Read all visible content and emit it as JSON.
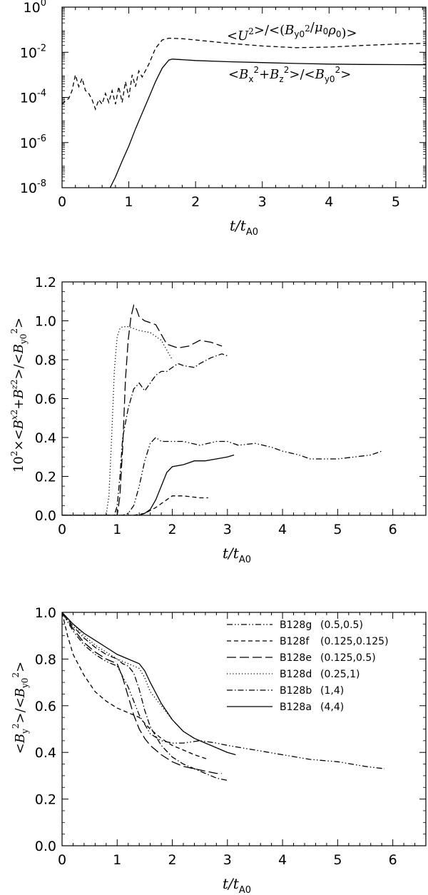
{
  "chart_data": [
    {
      "type": "line",
      "yscale": "log",
      "xlabel": "t/t_A0",
      "ylabel": "",
      "xlim": [
        0,
        5.45
      ],
      "ylim": [
        1e-08,
        1
      ],
      "xticks": [
        "0",
        "1",
        "2",
        "3",
        "4",
        "5"
      ],
      "yticks": [
        "10^0",
        "10^-2",
        "10^-4",
        "10^-6",
        "10^-8"
      ],
      "annotations": [
        "<U²>/<(B_y0²/μ₀ρ₀)>",
        "<B_x²+B_z²>/<B_y0²>"
      ],
      "series": [
        {
          "name": "<U²>/<(B_y0²/μ₀ρ₀)>",
          "style": "dashed",
          "x": [
            0,
            0.05,
            0.1,
            0.15,
            0.2,
            0.25,
            0.3,
            0.35,
            0.4,
            0.45,
            0.5,
            0.55,
            0.6,
            0.65,
            0.7,
            0.75,
            0.8,
            0.85,
            0.9,
            0.95,
            1.0,
            1.05,
            1.1,
            1.15,
            1.2,
            1.3,
            1.4,
            1.5,
            1.6,
            1.8,
            2.0,
            2.5,
            3.0,
            3.5,
            4.0,
            4.5,
            5.0,
            5.45
          ],
          "y": [
            5e-05,
            7e-05,
            9e-05,
            0.0002,
            0.001,
            0.0003,
            0.0007,
            0.0002,
            0.00015,
            8e-05,
            3e-05,
            8e-05,
            5e-05,
            0.00015,
            6e-05,
            0.0002,
            5e-05,
            0.0003,
            6e-05,
            0.0005,
            0.0001,
            0.001,
            0.0003,
            0.0015,
            0.0008,
            0.003,
            0.015,
            0.035,
            0.042,
            0.04,
            0.035,
            0.025,
            0.019,
            0.016,
            0.017,
            0.02,
            0.023,
            0.025
          ]
        },
        {
          "name": "<B_x²+B_z²>/<B_y0²>",
          "style": "solid",
          "x": [
            0.72,
            0.8,
            0.9,
            1.0,
            1.1,
            1.2,
            1.3,
            1.4,
            1.5,
            1.6,
            1.65,
            1.8,
            2.0,
            2.5,
            3.0,
            3.5,
            4.0,
            4.5,
            5.0,
            5.45
          ],
          "y": [
            1e-08,
            3e-08,
            1.5e-07,
            7e-07,
            4e-06,
            2e-05,
            0.0001,
            0.0005,
            0.002,
            0.0045,
            0.005,
            0.0047,
            0.0043,
            0.0038,
            0.0035,
            0.0032,
            0.003,
            0.0029,
            0.00285,
            0.0028
          ]
        }
      ]
    },
    {
      "type": "line",
      "xlabel": "t/t_A0",
      "ylabel": "10²×<B_x²+B_z²>/<B_y0²>",
      "xlim": [
        0,
        6.6
      ],
      "ylim": [
        0,
        1.2
      ],
      "xticks": [
        "0",
        "1",
        "2",
        "3",
        "4",
        "5",
        "6"
      ],
      "yticks": [
        "0.0",
        "0.2",
        "0.4",
        "0.6",
        "0.8",
        "1.0",
        "1.2"
      ],
      "series": [
        {
          "name": "B128g",
          "style": "dash-dot-dot",
          "x": [
            0,
            1.1,
            1.2,
            1.3,
            1.4,
            1.5,
            1.6,
            1.7,
            1.8,
            2.0,
            2.2,
            2.5,
            2.8,
            3.0,
            3.2,
            3.5,
            3.8,
            4.0,
            4.3,
            4.5,
            4.8,
            5.0,
            5.3,
            5.6,
            5.8
          ],
          "y": [
            0,
            0,
            0.01,
            0.05,
            0.15,
            0.28,
            0.37,
            0.4,
            0.38,
            0.38,
            0.38,
            0.36,
            0.38,
            0.38,
            0.36,
            0.37,
            0.35,
            0.33,
            0.31,
            0.29,
            0.29,
            0.29,
            0.3,
            0.31,
            0.33
          ]
        },
        {
          "name": "B128f",
          "style": "dashed",
          "x": [
            0,
            1.3,
            1.5,
            1.7,
            1.8,
            1.9,
            2.0,
            2.2,
            2.5,
            2.65
          ],
          "y": [
            0,
            0,
            0.01,
            0.04,
            0.06,
            0.08,
            0.1,
            0.1,
            0.09,
            0.09
          ]
        },
        {
          "name": "B128e",
          "style": "long-dash",
          "x": [
            0,
            1.0,
            1.05,
            1.1,
            1.15,
            1.2,
            1.25,
            1.3,
            1.35,
            1.4,
            1.5,
            1.7,
            1.9,
            2.1,
            2.3,
            2.5,
            2.7,
            2.9
          ],
          "y": [
            0,
            0,
            0.1,
            0.35,
            0.7,
            0.9,
            1.02,
            1.08,
            1.06,
            1.02,
            1.0,
            0.98,
            0.88,
            0.86,
            0.87,
            0.9,
            0.89,
            0.87
          ]
        },
        {
          "name": "B128d",
          "style": "dotted",
          "x": [
            0,
            0.8,
            0.85,
            0.9,
            0.95,
            1.0,
            1.05,
            1.1,
            1.2,
            1.3,
            1.4,
            1.6,
            1.8,
            1.9,
            2.0
          ],
          "y": [
            0,
            0,
            0.1,
            0.4,
            0.75,
            0.92,
            0.96,
            0.97,
            0.97,
            0.96,
            0.95,
            0.94,
            0.9,
            0.85,
            0.8
          ]
        },
        {
          "name": "B128b",
          "style": "dash-dot",
          "x": [
            0,
            0.95,
            1.0,
            1.05,
            1.1,
            1.2,
            1.3,
            1.4,
            1.5,
            1.6,
            1.7,
            1.8,
            1.9,
            2.0,
            2.1,
            2.2,
            2.4,
            2.5,
            2.7,
            2.9,
            3.0
          ],
          "y": [
            0,
            0,
            0.05,
            0.2,
            0.4,
            0.55,
            0.65,
            0.68,
            0.64,
            0.68,
            0.72,
            0.74,
            0.74,
            0.76,
            0.78,
            0.77,
            0.76,
            0.78,
            0.81,
            0.83,
            0.82
          ]
        },
        {
          "name": "B128a",
          "style": "solid",
          "x": [
            0,
            1.4,
            1.5,
            1.6,
            1.7,
            1.8,
            1.9,
            2.0,
            2.2,
            2.4,
            2.6,
            2.8,
            3.0,
            3.12
          ],
          "y": [
            0,
            0,
            0.01,
            0.03,
            0.08,
            0.15,
            0.22,
            0.25,
            0.26,
            0.28,
            0.28,
            0.29,
            0.3,
            0.31
          ]
        }
      ]
    },
    {
      "type": "line",
      "xlabel": "t/t_A0",
      "ylabel": "<B_y²>/<B_y0²>",
      "xlim": [
        0,
        6.6
      ],
      "ylim": [
        0,
        1.0
      ],
      "xticks": [
        "0",
        "1",
        "2",
        "3",
        "4",
        "5",
        "6"
      ],
      "yticks": [
        "0.0",
        "0.2",
        "0.4",
        "0.6",
        "0.8",
        "1.0"
      ],
      "legend": {
        "position": "top-right",
        "entries": [
          {
            "name": "B128g",
            "params": "(0.5,0.5)",
            "style": "dash-dot-dot"
          },
          {
            "name": "B128f",
            "params": "(0.125,0.125)",
            "style": "dashed"
          },
          {
            "name": "B128e",
            "params": "(0.125,0.5)",
            "style": "long-dash"
          },
          {
            "name": "B128d",
            "params": "(0.25,1)",
            "style": "dotted"
          },
          {
            "name": "B128b",
            "params": "(1,4)",
            "style": "dash-dot"
          },
          {
            "name": "B128a",
            "params": "(4,4)",
            "style": "solid"
          }
        ]
      },
      "series": [
        {
          "name": "B128g (0.5,0.5)",
          "style": "dash-dot-dot",
          "x": [
            0,
            0.2,
            0.4,
            0.6,
            0.8,
            1.0,
            1.2,
            1.4,
            1.6,
            1.8,
            2.0,
            2.2,
            2.5,
            2.8,
            3.0,
            3.5,
            4.0,
            4.5,
            5.0,
            5.5,
            5.85
          ],
          "y": [
            1.0,
            0.92,
            0.86,
            0.82,
            0.79,
            0.77,
            0.68,
            0.56,
            0.48,
            0.45,
            0.44,
            0.44,
            0.45,
            0.44,
            0.43,
            0.41,
            0.39,
            0.37,
            0.36,
            0.34,
            0.33
          ]
        },
        {
          "name": "B128f (0.125,0.125)",
          "style": "dashed",
          "x": [
            0,
            0.1,
            0.2,
            0.4,
            0.6,
            0.8,
            1.0,
            1.2,
            1.4,
            1.6,
            1.8,
            2.0,
            2.2,
            2.4,
            2.65
          ],
          "y": [
            1.0,
            0.9,
            0.82,
            0.73,
            0.66,
            0.62,
            0.59,
            0.57,
            0.55,
            0.5,
            0.46,
            0.43,
            0.41,
            0.39,
            0.37
          ]
        },
        {
          "name": "B128e (0.125,0.5)",
          "style": "long-dash",
          "x": [
            0,
            0.2,
            0.4,
            0.6,
            0.8,
            1.0,
            1.1,
            1.2,
            1.3,
            1.4,
            1.5,
            1.6,
            1.8,
            2.0,
            2.2,
            2.4,
            2.6,
            2.8,
            2.9
          ],
          "y": [
            1.0,
            0.93,
            0.87,
            0.83,
            0.8,
            0.78,
            0.72,
            0.64,
            0.56,
            0.5,
            0.46,
            0.43,
            0.39,
            0.36,
            0.34,
            0.33,
            0.32,
            0.31,
            0.31
          ]
        },
        {
          "name": "B128d (0.25,1)",
          "style": "dotted",
          "x": [
            0,
            0.2,
            0.4,
            0.6,
            0.8,
            1.0,
            1.2,
            1.3,
            1.4,
            1.5,
            1.6,
            1.8,
            2.0,
            2.2,
            2.4,
            2.6,
            2.8,
            3.0
          ],
          "y": [
            1.0,
            0.95,
            0.9,
            0.86,
            0.83,
            0.8,
            0.78,
            0.77,
            0.76,
            0.72,
            0.66,
            0.6,
            0.54,
            0.49,
            0.46,
            0.44,
            0.42,
            0.4
          ]
        },
        {
          "name": "B128b (1,4)",
          "style": "dash-dot",
          "x": [
            0,
            0.2,
            0.4,
            0.6,
            0.8,
            1.0,
            1.1,
            1.2,
            1.3,
            1.4,
            1.5,
            1.6,
            1.8,
            2.0,
            2.2,
            2.4,
            2.6,
            2.8,
            3.0
          ],
          "y": [
            1.0,
            0.94,
            0.89,
            0.85,
            0.82,
            0.8,
            0.78,
            0.77,
            0.74,
            0.67,
            0.58,
            0.51,
            0.43,
            0.38,
            0.35,
            0.33,
            0.31,
            0.29,
            0.28
          ]
        },
        {
          "name": "B128a (4,4)",
          "style": "solid",
          "x": [
            0,
            0.2,
            0.4,
            0.6,
            0.8,
            1.0,
            1.2,
            1.4,
            1.5,
            1.6,
            1.8,
            2.0,
            2.2,
            2.4,
            2.6,
            2.8,
            3.0,
            3.15
          ],
          "y": [
            1.0,
            0.95,
            0.91,
            0.88,
            0.85,
            0.82,
            0.8,
            0.78,
            0.75,
            0.7,
            0.61,
            0.54,
            0.49,
            0.46,
            0.44,
            0.42,
            0.4,
            0.39
          ]
        }
      ]
    }
  ]
}
